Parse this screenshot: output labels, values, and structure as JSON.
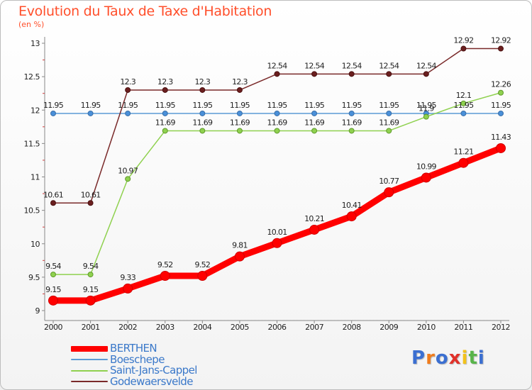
{
  "chart_data": {
    "type": "line",
    "title": "Evolution du Taux de Taxe d'Habitation",
    "subtitle": "(en %)",
    "x": [
      "2000",
      "2001",
      "2002",
      "2003",
      "2004",
      "2005",
      "2006",
      "2007",
      "2008",
      "2009",
      "2010",
      "2011",
      "2012"
    ],
    "ylim": [
      9,
      13
    ],
    "yticks": [
      "9",
      "9.5",
      "10",
      "10.5",
      "11",
      "11.5",
      "12",
      "12.5",
      "13"
    ],
    "grid": false,
    "legend_position": "bottom-left",
    "series": [
      {
        "name": "BERTHEN",
        "color": "#ff0000",
        "values": [
          9.15,
          9.15,
          9.33,
          9.52,
          9.52,
          9.81,
          10.01,
          10.21,
          10.41,
          10.77,
          10.99,
          11.21,
          11.43
        ],
        "labels": [
          "9.15",
          "9.15",
          "9.33",
          "9.52",
          "9.52",
          "9.81",
          "10.01",
          "10.21",
          "10.41",
          "10.77",
          "10.99",
          "11.21",
          "11.43"
        ]
      },
      {
        "name": "Boeschepe",
        "color": "#5b9bd5",
        "values": [
          11.95,
          11.95,
          11.95,
          11.95,
          11.95,
          11.95,
          11.95,
          11.95,
          11.95,
          11.95,
          11.95,
          11.95,
          11.95
        ],
        "labels": [
          "11.95",
          "11.95",
          "11.95",
          "11.95",
          "11.95",
          "11.95",
          "11.95",
          "11.95",
          "11.95",
          "11.95",
          "11.95",
          "11.95",
          "11.95"
        ]
      },
      {
        "name": "Saint-Jans-Cappel",
        "color": "#8fd14f",
        "values": [
          9.54,
          9.54,
          10.97,
          11.69,
          11.69,
          11.69,
          11.69,
          11.69,
          11.69,
          11.69,
          11.9,
          12.1,
          12.26
        ],
        "labels": [
          "9.54",
          "9.54",
          "10.97",
          "11.69",
          "11.69",
          "11.69",
          "11.69",
          "11.69",
          "11.69",
          "11.69",
          "11.9",
          "12.1",
          "12.26"
        ]
      },
      {
        "name": "Godewaersvelde",
        "color": "#7a2a2a",
        "values": [
          10.61,
          10.61,
          12.3,
          12.3,
          12.3,
          12.3,
          12.54,
          12.54,
          12.54,
          12.54,
          12.54,
          12.92,
          12.92
        ],
        "labels": [
          "10.61",
          "10.61",
          "12.3",
          "12.3",
          "12.3",
          "12.3",
          "12.54",
          "12.54",
          "12.54",
          "12.54",
          "12.54",
          "12.92",
          "12.92"
        ]
      }
    ]
  },
  "logo": {
    "letters": [
      "P",
      "r",
      "o",
      "x",
      "i",
      "t",
      "i"
    ]
  }
}
